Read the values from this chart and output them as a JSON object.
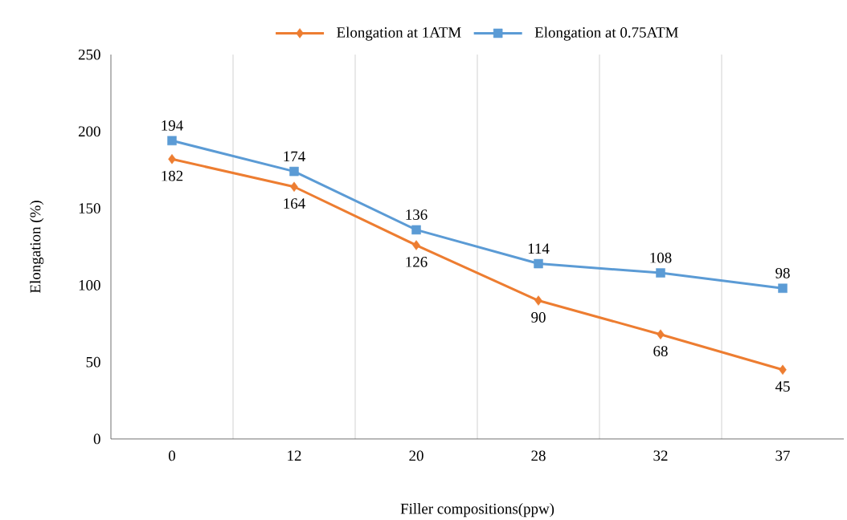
{
  "chart_data": {
    "type": "line",
    "xlabel": "Filler compositions(ppw)",
    "ylabel": "Elongation (%)",
    "categories": [
      "0",
      "12",
      "20",
      "28",
      "32",
      "37"
    ],
    "series": [
      {
        "name": "Elongation at 1ATM",
        "color": "#ed7d31",
        "marker": "diamond",
        "values": [
          182,
          164,
          126,
          90,
          68,
          45
        ]
      },
      {
        "name": "Elongation at 0.75ATM",
        "color": "#5b9bd5",
        "marker": "square",
        "values": [
          194,
          174,
          136,
          114,
          108,
          98
        ]
      }
    ],
    "ylim": [
      0,
      250
    ],
    "yticks": [
      0,
      50,
      100,
      150,
      200,
      250
    ],
    "grid": "x",
    "legend": "top",
    "data_labels": true,
    "line_style": "solid"
  }
}
